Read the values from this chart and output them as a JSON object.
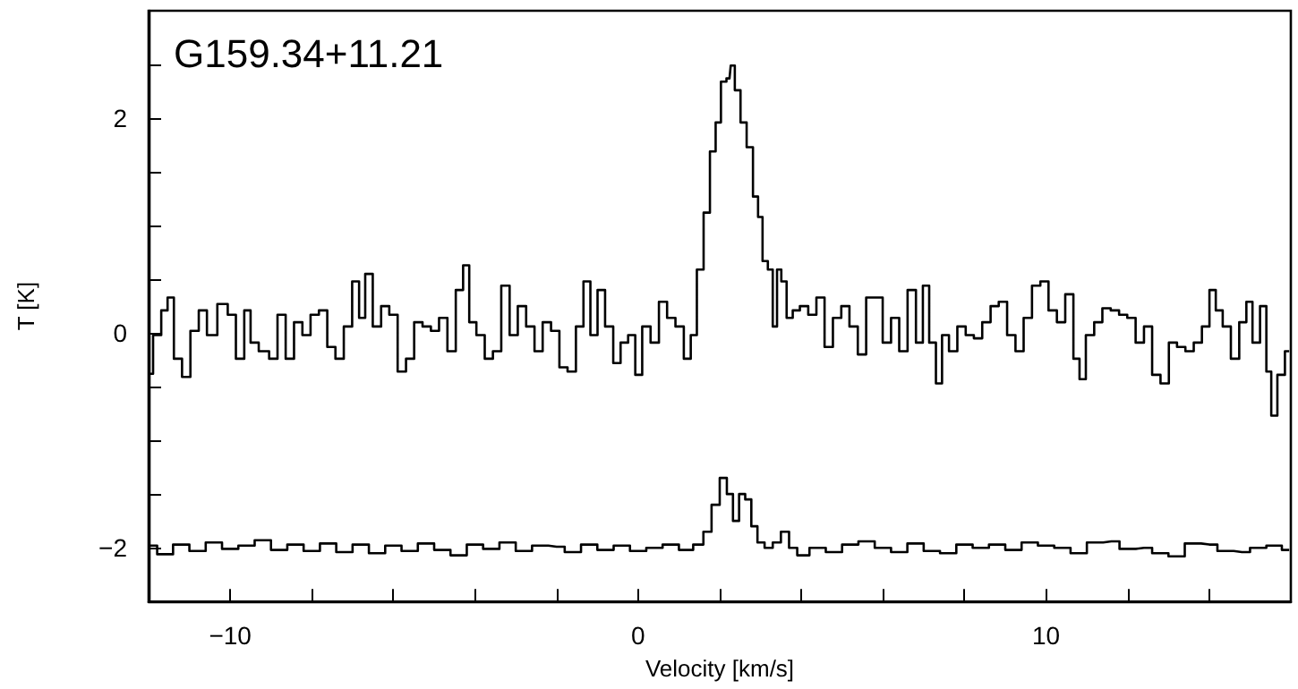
{
  "chart_data": {
    "type": "step",
    "title": "G159.34+11.21",
    "xlabel": "Velocity [km/s]",
    "ylabel": "T [K]",
    "xlim": [
      -12,
      16
    ],
    "ylim": [
      -2.5,
      3
    ],
    "xticks": [
      {
        "value": -10,
        "label": "−10"
      },
      {
        "value": -8,
        "label": null
      },
      {
        "value": -6,
        "label": null
      },
      {
        "value": -4,
        "label": null
      },
      {
        "value": -2,
        "label": null
      },
      0,
      {
        "value": 2,
        "label": null
      },
      {
        "value": 4,
        "label": null
      },
      {
        "value": 6,
        "label": null
      },
      {
        "value": 8,
        "label": null
      },
      10,
      {
        "value": 12,
        "label": null
      },
      {
        "value": 14,
        "label": null
      }
    ],
    "yticks": [
      {
        "value": -2,
        "label": "−2"
      },
      {
        "value": -1.5,
        "label": null
      },
      {
        "value": -1,
        "label": null
      },
      {
        "value": -0.5,
        "label": null
      },
      0,
      {
        "value": 0.5,
        "label": null
      },
      {
        "value": 1,
        "label": null
      },
      {
        "value": 1.5,
        "label": null
      },
      2,
      {
        "value": 2.5,
        "label": null
      }
    ],
    "grid": false,
    "line_style": "solid",
    "marker": "none",
    "series": [
      {
        "color": "#000000",
        "x": [
          -11.99,
          -11.79,
          -11.59,
          -11.48,
          -11.28,
          -11.08,
          -10.87,
          -10.67,
          -10.47,
          -10.16,
          -9.96,
          -9.76,
          -9.55,
          -9.45,
          -9.15,
          -8.94,
          -8.74,
          -8.54,
          -8.33,
          -8.13,
          -7.93,
          -7.72,
          -7.52,
          -7.32,
          -7.11,
          -6.91,
          -6.77,
          -6.61,
          -6.4,
          -6.2,
          -6.0,
          -5.79,
          -5.59,
          -5.39,
          -5.18,
          -4.98,
          -4.78,
          -4.57,
          -4.37,
          -4.21,
          -4.07,
          -3.86,
          -3.66,
          -3.46,
          -3.25,
          -3.05,
          -2.85,
          -2.64,
          -2.44,
          -2.24,
          -2.03,
          -1.83,
          -1.63,
          -1.42,
          -1.26,
          -1.08,
          -0.91,
          -0.71,
          -0.51,
          -0.35,
          -0.14,
          0.0,
          0.2,
          0.41,
          0.61,
          0.81,
          1.02,
          1.22,
          1.36,
          1.52,
          1.69,
          1.83,
          1.97,
          2.09,
          2.24,
          2.3,
          2.44,
          2.58,
          2.74,
          2.89,
          2.99,
          3.11,
          3.25,
          3.35,
          3.46,
          3.56,
          3.72,
          3.86,
          4.07,
          4.27,
          4.47,
          4.67,
          4.88,
          5.08,
          5.28,
          5.49,
          5.69,
          5.89,
          6.1,
          6.3,
          6.5,
          6.71,
          6.91,
          7.05,
          7.22,
          7.38,
          7.52,
          7.72,
          7.93,
          8.13,
          8.33,
          8.54,
          8.74,
          8.94,
          9.15,
          9.35,
          9.55,
          9.76,
          9.96,
          10.16,
          10.37,
          10.57,
          10.77,
          10.87,
          11.08,
          11.28,
          11.48,
          11.69,
          11.89,
          12.09,
          12.3,
          12.5,
          12.7,
          12.91,
          13.11,
          13.31,
          13.52,
          13.72,
          13.92,
          14.09,
          14.23,
          14.43,
          14.63,
          14.84,
          14.98,
          15.14,
          15.35,
          15.45,
          15.59,
          15.75,
          15.96
        ],
        "values": [
          -0.38,
          -0.02,
          0.21,
          0.33,
          -0.24,
          -0.41,
          0.02,
          0.21,
          -0.02,
          0.27,
          0.17,
          -0.24,
          0.21,
          -0.09,
          -0.17,
          -0.24,
          0.17,
          -0.24,
          0.1,
          -0.02,
          0.17,
          0.21,
          -0.13,
          -0.24,
          0.06,
          0.48,
          0.14,
          0.55,
          0.06,
          0.25,
          0.17,
          -0.36,
          -0.24,
          0.1,
          0.06,
          0.02,
          0.14,
          -0.17,
          0.4,
          0.63,
          0.1,
          -0.02,
          -0.24,
          -0.17,
          0.44,
          -0.02,
          0.25,
          0.06,
          -0.17,
          0.1,
          0.02,
          -0.32,
          -0.36,
          0.06,
          0.48,
          -0.02,
          0.4,
          0.06,
          -0.28,
          -0.09,
          -0.02,
          -0.39,
          0.06,
          -0.09,
          0.29,
          0.14,
          0.06,
          -0.24,
          -0.02,
          0.59,
          1.12,
          1.69,
          1.96,
          2.34,
          2.37,
          2.49,
          2.26,
          1.96,
          1.73,
          1.27,
          1.08,
          0.67,
          0.59,
          0.06,
          0.59,
          0.48,
          0.14,
          0.21,
          0.25,
          0.17,
          0.33,
          -0.13,
          0.14,
          0.25,
          0.06,
          -0.2,
          0.33,
          0.33,
          -0.09,
          0.14,
          -0.17,
          0.4,
          -0.09,
          0.44,
          -0.09,
          -0.47,
          -0.02,
          -0.17,
          0.06,
          -0.02,
          -0.05,
          0.1,
          0.25,
          0.29,
          -0.02,
          -0.17,
          0.14,
          0.44,
          0.48,
          0.21,
          0.1,
          0.36,
          -0.24,
          -0.43,
          -0.02,
          0.1,
          0.23,
          0.21,
          0.17,
          0.14,
          -0.09,
          0.06,
          -0.39,
          -0.47,
          -0.09,
          -0.13,
          -0.17,
          -0.09,
          0.06,
          0.4,
          0.21,
          0.06,
          -0.24,
          0.1,
          0.29,
          -0.09,
          0.25,
          -0.36,
          -0.77,
          -0.39,
          -0.17
        ]
      },
      {
        "color": "#000000",
        "x": [
          -11.98,
          -11.6,
          -11.2,
          -10.8,
          -10.4,
          -10.0,
          -9.6,
          -9.2,
          -8.8,
          -8.4,
          -8.0,
          -7.6,
          -7.2,
          -6.8,
          -6.4,
          -6.0,
          -5.6,
          -5.2,
          -4.8,
          -4.4,
          -4.0,
          -3.6,
          -3.2,
          -2.8,
          -2.4,
          -2.0,
          -1.6,
          -1.2,
          -0.8,
          -0.4,
          0.0,
          0.4,
          0.8,
          1.2,
          1.5,
          1.7,
          1.9,
          2.1,
          2.25,
          2.4,
          2.55,
          2.7,
          2.85,
          3.0,
          3.2,
          3.4,
          3.6,
          3.8,
          4.0,
          4.4,
          4.8,
          5.2,
          5.6,
          6.0,
          6.4,
          6.8,
          7.2,
          7.6,
          8.0,
          8.4,
          8.8,
          9.2,
          9.6,
          10.0,
          10.4,
          10.8,
          11.2,
          11.6,
          12.0,
          12.4,
          12.8,
          13.2,
          13.6,
          14.0,
          14.4,
          14.8,
          15.2,
          15.6,
          15.96
        ],
        "values": [
          -1.98,
          -2.06,
          -1.97,
          -2.03,
          -1.95,
          -2.01,
          -1.98,
          -1.93,
          -2.02,
          -1.97,
          -2.03,
          -1.96,
          -2.04,
          -1.97,
          -2.05,
          -1.98,
          -2.03,
          -1.96,
          -2.02,
          -2.07,
          -1.97,
          -2.01,
          -1.95,
          -2.03,
          -1.98,
          -1.99,
          -2.04,
          -1.97,
          -2.02,
          -1.98,
          -2.03,
          -2.0,
          -1.97,
          -2.02,
          -1.97,
          -1.85,
          -1.6,
          -1.35,
          -1.5,
          -1.75,
          -1.5,
          -1.55,
          -1.8,
          -1.95,
          -2.0,
          -1.95,
          -1.85,
          -2.0,
          -2.07,
          -2.0,
          -2.04,
          -1.97,
          -1.94,
          -2.0,
          -2.04,
          -1.96,
          -2.03,
          -2.05,
          -1.97,
          -2.0,
          -1.97,
          -2.02,
          -1.95,
          -1.98,
          -2.0,
          -2.05,
          -1.95,
          -1.94,
          -2.01,
          -2.0,
          -2.05,
          -2.08,
          -1.96,
          -1.97,
          -2.03,
          -2.04,
          -2.0,
          -1.98,
          -2.02
        ]
      }
    ]
  }
}
